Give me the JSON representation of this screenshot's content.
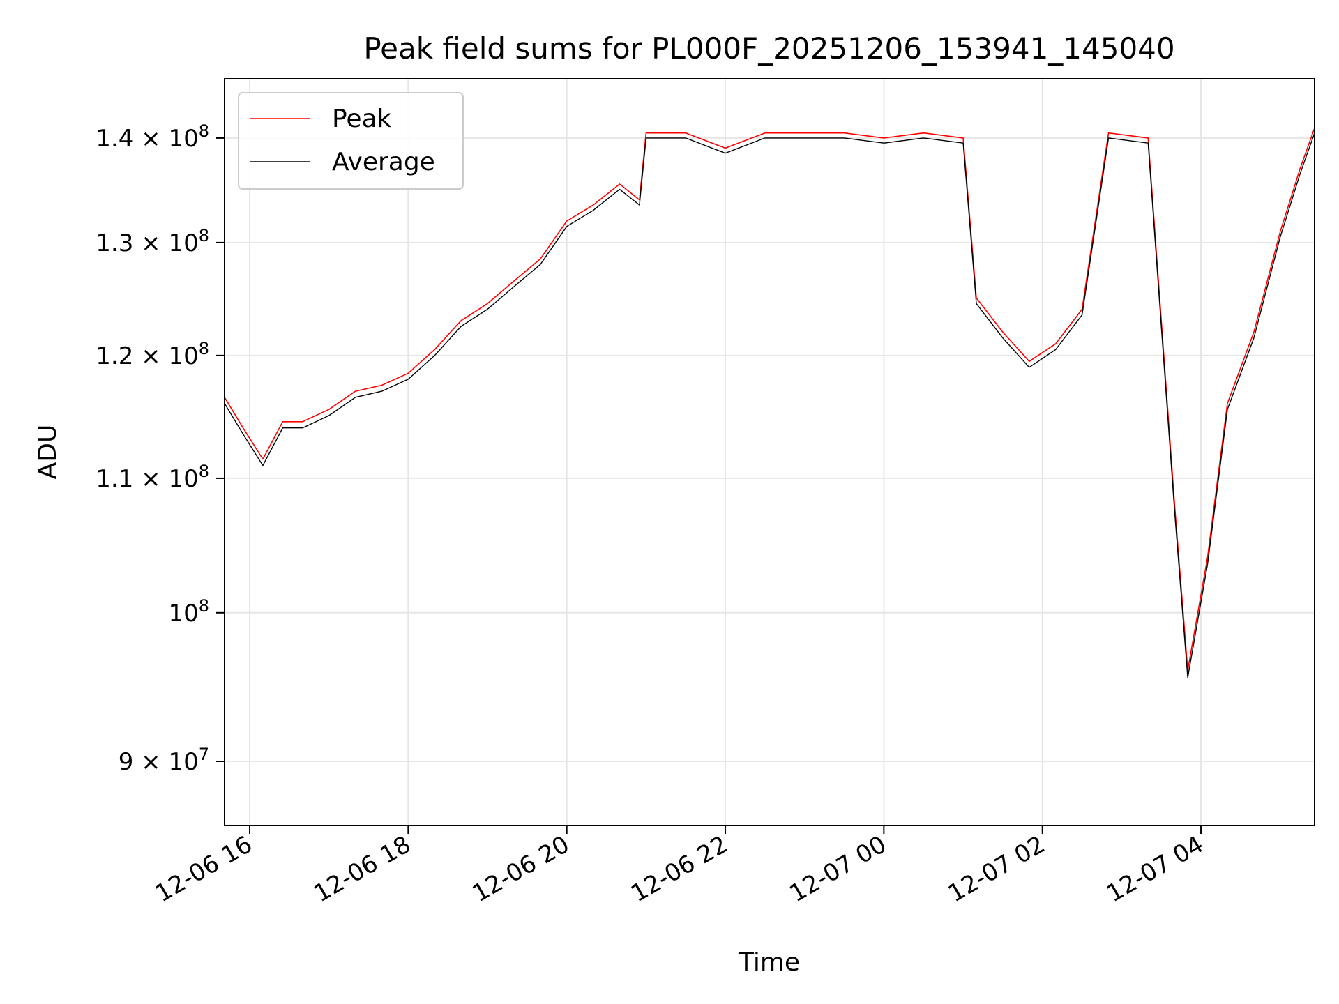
{
  "chart_data": {
    "type": "line",
    "title": "Peak field sums for PL000F_20251206_153941_145040",
    "xlabel": "Time",
    "ylabel": "ADU",
    "yscale": "log",
    "xlim": [
      "2025-12-06 15:41",
      "2025-12-07 05:26"
    ],
    "ylim": [
      86000000,
      146000000
    ],
    "grid": true,
    "legend_position": "upper left",
    "x_ticks": [
      {
        "value": "2025-12-06 16:00",
        "label": "12-06 16"
      },
      {
        "value": "2025-12-06 18:00",
        "label": "12-06 18"
      },
      {
        "value": "2025-12-06 20:00",
        "label": "12-06 20"
      },
      {
        "value": "2025-12-06 22:00",
        "label": "12-06 22"
      },
      {
        "value": "2025-12-07 00:00",
        "label": "12-07 00"
      },
      {
        "value": "2025-12-07 02:00",
        "label": "12-07 02"
      },
      {
        "value": "2025-12-07 04:00",
        "label": "12-07 04"
      }
    ],
    "y_ticks": [
      {
        "value": 90000000,
        "mantissa": "9",
        "exponent": "7"
      },
      {
        "value": 100000000,
        "mantissa": "",
        "exponent": "8"
      },
      {
        "value": 110000000,
        "mantissa": "1.1",
        "exponent": "8"
      },
      {
        "value": 120000000,
        "mantissa": "1.2",
        "exponent": "8"
      },
      {
        "value": 130000000,
        "mantissa": "1.3",
        "exponent": "8"
      },
      {
        "value": 140000000,
        "mantissa": "1.4",
        "exponent": "8"
      }
    ],
    "series": [
      {
        "name": "Peak",
        "color": "#ff0000",
        "points": [
          [
            "2025-12-06 15:41",
            116.5
          ],
          [
            "2025-12-06 15:55",
            114
          ],
          [
            "2025-12-06 16:10",
            111.5
          ],
          [
            "2025-12-06 16:25",
            114.5
          ],
          [
            "2025-12-06 16:40",
            114.5
          ],
          [
            "2025-12-06 17:00",
            115.5
          ],
          [
            "2025-12-06 17:20",
            117
          ],
          [
            "2025-12-06 17:40",
            117.5
          ],
          [
            "2025-12-06 18:00",
            118.5
          ],
          [
            "2025-12-06 18:20",
            120.5
          ],
          [
            "2025-12-06 18:40",
            123
          ],
          [
            "2025-12-06 19:00",
            124.5
          ],
          [
            "2025-12-06 19:20",
            126.5
          ],
          [
            "2025-12-06 19:40",
            128.5
          ],
          [
            "2025-12-06 20:00",
            132
          ],
          [
            "2025-12-06 20:20",
            133.5
          ],
          [
            "2025-12-06 20:40",
            135.5
          ],
          [
            "2025-12-06 20:55",
            134
          ],
          [
            "2025-12-06 21:00",
            140.5
          ],
          [
            "2025-12-06 21:30",
            140.5
          ],
          [
            "2025-12-06 22:00",
            139
          ],
          [
            "2025-12-06 22:30",
            140.5
          ],
          [
            "2025-12-06 23:00",
            140.5
          ],
          [
            "2025-12-06 23:30",
            140.5
          ],
          [
            "2025-12-07 00:00",
            140
          ],
          [
            "2025-12-07 00:30",
            140.5
          ],
          [
            "2025-12-07 01:00",
            140
          ],
          [
            "2025-12-07 01:10",
            125
          ],
          [
            "2025-12-07 01:30",
            122
          ],
          [
            "2025-12-07 01:50",
            119.5
          ],
          [
            "2025-12-07 02:10",
            121
          ],
          [
            "2025-12-07 02:30",
            124
          ],
          [
            "2025-12-07 02:50",
            140.5
          ],
          [
            "2025-12-07 03:20",
            140
          ],
          [
            "2025-12-07 03:40",
            108
          ],
          [
            "2025-12-07 03:50",
            96
          ],
          [
            "2025-12-07 04:05",
            104
          ],
          [
            "2025-12-07 04:20",
            116
          ],
          [
            "2025-12-07 04:40",
            122
          ],
          [
            "2025-12-07 05:00",
            131
          ],
          [
            "2025-12-07 05:15",
            137
          ],
          [
            "2025-12-07 05:26",
            141
          ]
        ]
      },
      {
        "name": "Average",
        "color": "#000000",
        "points": [
          [
            "2025-12-06 15:41",
            116
          ],
          [
            "2025-12-06 15:55",
            113.5
          ],
          [
            "2025-12-06 16:10",
            111
          ],
          [
            "2025-12-06 16:25",
            114
          ],
          [
            "2025-12-06 16:40",
            114
          ],
          [
            "2025-12-06 17:00",
            115
          ],
          [
            "2025-12-06 17:20",
            116.5
          ],
          [
            "2025-12-06 17:40",
            117
          ],
          [
            "2025-12-06 18:00",
            118
          ],
          [
            "2025-12-06 18:20",
            120
          ],
          [
            "2025-12-06 18:40",
            122.5
          ],
          [
            "2025-12-06 19:00",
            124
          ],
          [
            "2025-12-06 19:20",
            126
          ],
          [
            "2025-12-06 19:40",
            128
          ],
          [
            "2025-12-06 20:00",
            131.5
          ],
          [
            "2025-12-06 20:20",
            133
          ],
          [
            "2025-12-06 20:40",
            135
          ],
          [
            "2025-12-06 20:55",
            133.5
          ],
          [
            "2025-12-06 21:00",
            140
          ],
          [
            "2025-12-06 21:30",
            140
          ],
          [
            "2025-12-06 22:00",
            138.5
          ],
          [
            "2025-12-06 22:30",
            140
          ],
          [
            "2025-12-06 23:00",
            140
          ],
          [
            "2025-12-06 23:30",
            140
          ],
          [
            "2025-12-07 00:00",
            139.5
          ],
          [
            "2025-12-07 00:30",
            140
          ],
          [
            "2025-12-07 01:00",
            139.5
          ],
          [
            "2025-12-07 01:10",
            124.5
          ],
          [
            "2025-12-07 01:30",
            121.5
          ],
          [
            "2025-12-07 01:50",
            119
          ],
          [
            "2025-12-07 02:10",
            120.5
          ],
          [
            "2025-12-07 02:30",
            123.5
          ],
          [
            "2025-12-07 02:50",
            140
          ],
          [
            "2025-12-07 03:20",
            139.5
          ],
          [
            "2025-12-07 03:40",
            107.5
          ],
          [
            "2025-12-07 03:50",
            95.5
          ],
          [
            "2025-12-07 04:05",
            103.5
          ],
          [
            "2025-12-07 04:20",
            115.5
          ],
          [
            "2025-12-07 04:40",
            121.5
          ],
          [
            "2025-12-07 05:00",
            130.5
          ],
          [
            "2025-12-07 05:15",
            136.5
          ],
          [
            "2025-12-07 05:26",
            140.5
          ]
        ]
      }
    ],
    "y_values_unit_multiplier": 1000000
  }
}
